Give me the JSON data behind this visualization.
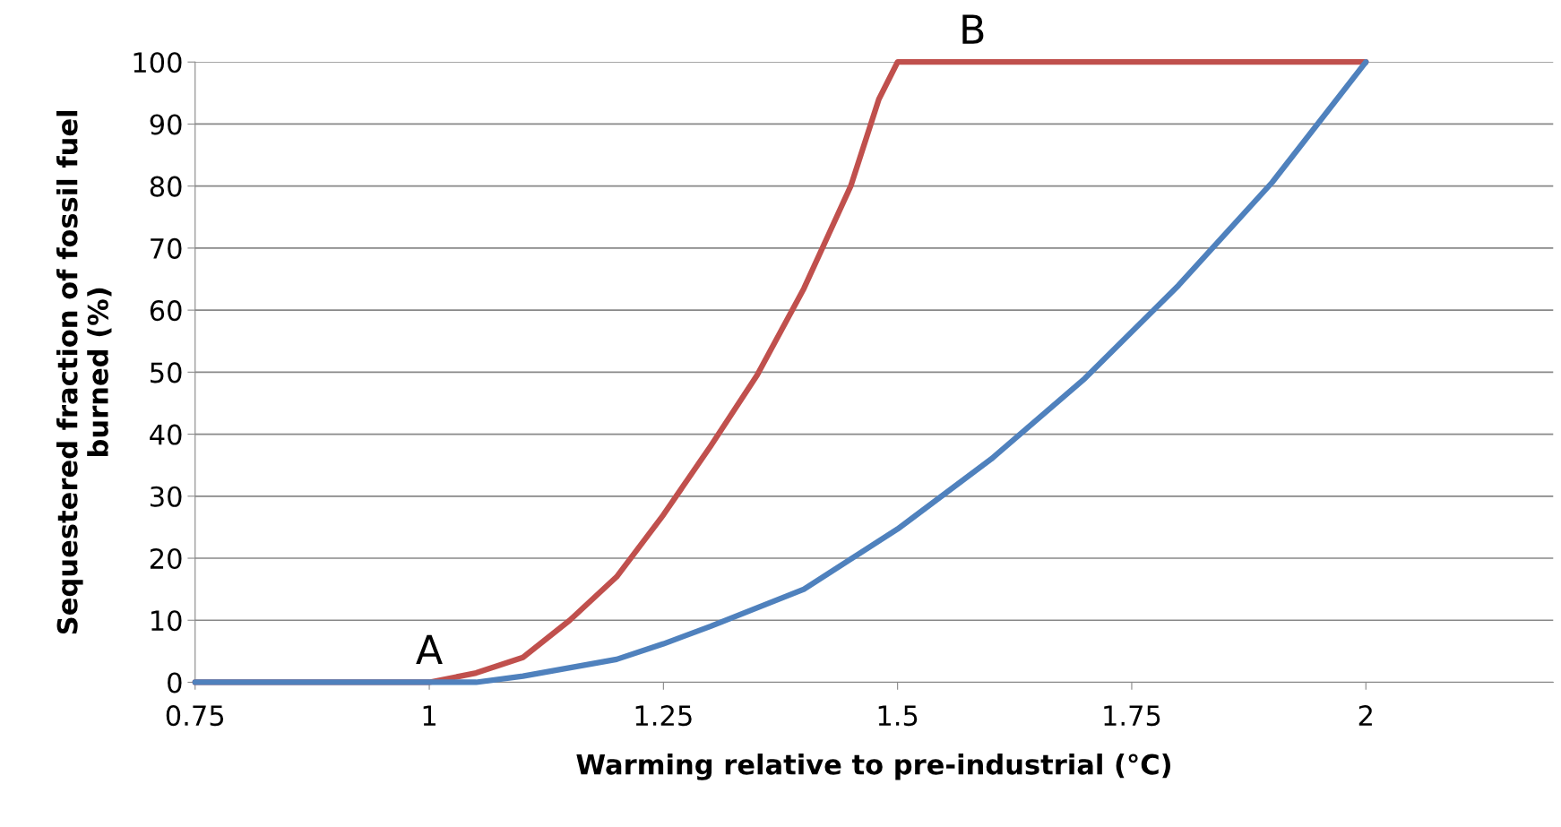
{
  "chart_data": {
    "type": "line",
    "xlabel": "Warming relative to pre-industrial (°C)",
    "ylabel": "Sequestered fraction of fossil fuel burned (%)",
    "xlim": [
      0.75,
      2.2
    ],
    "xticks": [
      0.75,
      1,
      1.25,
      1.5,
      1.75,
      2
    ],
    "ylim": [
      0,
      100
    ],
    "yticks": [
      0,
      10,
      20,
      30,
      40,
      50,
      60,
      70,
      80,
      90,
      100
    ],
    "grid": "y",
    "marker": "none",
    "line_style": "solid",
    "series": [
      {
        "color": "#c0504d",
        "x": [
          0.75,
          0.9,
          1.0,
          1.05,
          1.1,
          1.15,
          1.2,
          1.25,
          1.3,
          1.35,
          1.4,
          1.45,
          1.48,
          1.5,
          1.6,
          1.7,
          1.8,
          1.9,
          2.0
        ],
        "values": [
          0,
          0,
          0,
          1.5,
          4,
          10,
          17,
          27,
          38,
          49.5,
          63.5,
          80,
          94,
          100,
          100,
          100,
          100,
          100,
          100
        ]
      },
      {
        "color": "#4f81bd",
        "x": [
          0.75,
          0.9,
          1.0,
          1.05,
          1.1,
          1.2,
          1.25,
          1.3,
          1.4,
          1.5,
          1.6,
          1.7,
          1.8,
          1.9,
          2.0
        ],
        "values": [
          0,
          0,
          0,
          0,
          1,
          3.7,
          6.2,
          9,
          15,
          24.7,
          36,
          49,
          64,
          80.6,
          100
        ]
      }
    ],
    "annotations": [
      {
        "text": "A",
        "x": 1.0,
        "y": 0
      },
      {
        "text": "B",
        "x": 1.58,
        "y": 100
      }
    ]
  }
}
